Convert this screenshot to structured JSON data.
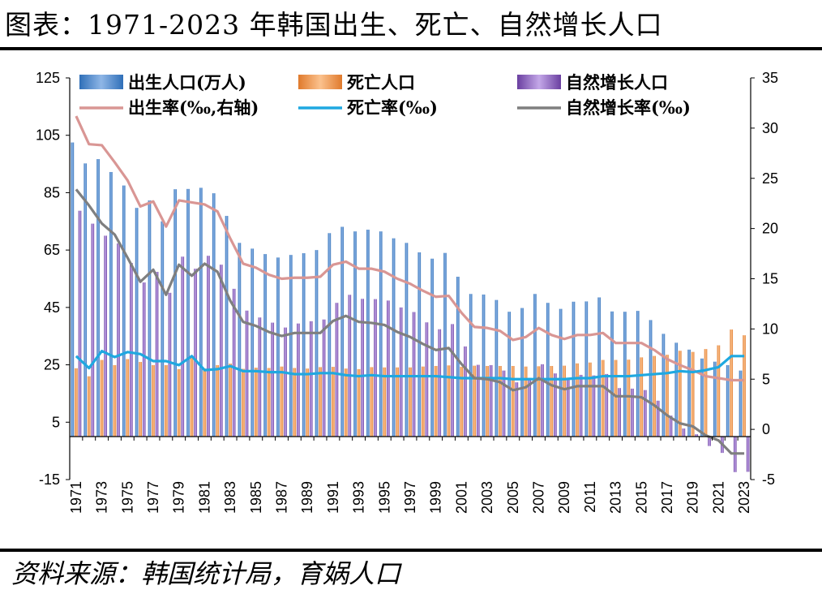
{
  "title": "图表：1971-2023 年韩国出生、死亡、自然增长人口",
  "source": "资料来源：韩国统计局，育娲人口",
  "chart_data": {
    "type": "bar",
    "title": "图表：1971-2023 年韩国出生、死亡、自然增长人口",
    "x": [
      1971,
      1972,
      1973,
      1974,
      1975,
      1976,
      1977,
      1978,
      1979,
      1980,
      1981,
      1982,
      1983,
      1984,
      1985,
      1986,
      1987,
      1988,
      1989,
      1990,
      1991,
      1992,
      1993,
      1994,
      1995,
      1996,
      1997,
      1998,
      1999,
      2000,
      2001,
      2002,
      2003,
      2004,
      2005,
      2006,
      2007,
      2008,
      2009,
      2010,
      2011,
      2012,
      2013,
      2014,
      2015,
      2016,
      2017,
      2018,
      2019,
      2020,
      2021,
      2022,
      2023
    ],
    "x_tick_labels": [
      "1971",
      "1973",
      "1975",
      "1977",
      "1979",
      "1981",
      "1983",
      "1985",
      "1987",
      "1989",
      "1991",
      "1993",
      "1995",
      "1997",
      "1999",
      "2001",
      "2003",
      "2005",
      "2007",
      "2009",
      "2011",
      "2013",
      "2015",
      "2017",
      "2019",
      "2021",
      "2023"
    ],
    "left_axis": {
      "ylim": [
        -15,
        125
      ],
      "ticks": [
        "-15",
        "5",
        "25",
        "45",
        "65",
        "85",
        "105",
        "125"
      ]
    },
    "right_axis": {
      "ylim": [
        -5,
        35
      ],
      "ticks": [
        "-5",
        "0",
        "5",
        "10",
        "15",
        "20",
        "25",
        "30",
        "35"
      ]
    },
    "grid": false,
    "legend_position": "top",
    "series": [
      {
        "name": "出生人口(万人)",
        "type": "bar",
        "axis": "left",
        "color": "#4f81bd",
        "values": [
          102.5,
          95.2,
          96.7,
          92.2,
          87.5,
          79.7,
          82.3,
          75.0,
          86.2,
          86.3,
          86.7,
          84.8,
          76.9,
          67.5,
          65.5,
          63.6,
          62.4,
          63.3,
          63.9,
          65.0,
          70.9,
          73.1,
          71.5,
          72.1,
          71.5,
          69.1,
          67.5,
          64.2,
          62.0,
          64.0,
          55.7,
          49.7,
          49.5,
          47.6,
          43.5,
          44.8,
          49.7,
          46.6,
          44.5,
          47.0,
          47.1,
          48.5,
          43.6,
          43.5,
          43.8,
          40.6,
          35.8,
          32.7,
          30.3,
          27.2,
          26.1,
          24.9,
          23.0
        ]
      },
      {
        "name": "死亡人口",
        "type": "bar",
        "axis": "left",
        "color": "#f79646",
        "values": [
          23.8,
          21.0,
          26.7,
          24.9,
          27.0,
          26.0,
          24.9,
          24.9,
          23.5,
          27.8,
          23.7,
          24.9,
          25.4,
          23.6,
          24.0,
          23.9,
          24.4,
          23.9,
          23.7,
          24.2,
          24.3,
          23.7,
          23.5,
          24.2,
          24.1,
          24.1,
          24.1,
          24.4,
          24.6,
          24.8,
          24.3,
          24.7,
          24.6,
          24.6,
          24.6,
          24.4,
          24.5,
          24.6,
          24.7,
          25.5,
          25.8,
          26.7,
          26.7,
          26.8,
          27.6,
          28.1,
          28.5,
          29.9,
          29.5,
          30.5,
          31.8,
          37.3,
          35.3
        ]
      },
      {
        "name": "自然增长人口",
        "type": "bar",
        "axis": "left",
        "color": "#8064a2",
        "values": [
          78.7,
          74.2,
          70.0,
          67.3,
          60.5,
          53.7,
          57.4,
          50.1,
          62.7,
          58.5,
          63.0,
          59.9,
          51.5,
          43.9,
          41.5,
          39.7,
          38.0,
          39.4,
          40.2,
          40.8,
          46.6,
          49.4,
          48.0,
          47.9,
          47.4,
          45.0,
          43.4,
          39.8,
          37.4,
          39.2,
          31.4,
          25.0,
          24.9,
          23.0,
          18.9,
          20.4,
          25.2,
          22.0,
          19.8,
          21.5,
          21.3,
          21.8,
          16.9,
          16.7,
          16.2,
          12.5,
          7.3,
          2.8,
          0.8,
          -3.3,
          -5.7,
          -12.4,
          -12.3
        ]
      },
      {
        "name": "出生率(‰,右轴)",
        "type": "line",
        "axis": "right",
        "color": "#d99694",
        "values": [
          31.2,
          28.4,
          28.3,
          26.6,
          24.8,
          22.2,
          22.7,
          20.2,
          22.8,
          22.6,
          22.4,
          21.7,
          19.0,
          16.5,
          16.1,
          15.4,
          15.0,
          15.1,
          15.1,
          15.2,
          16.4,
          16.7,
          16.0,
          16.0,
          15.7,
          15.0,
          14.5,
          13.8,
          13.2,
          13.3,
          11.6,
          10.2,
          10.1,
          9.8,
          8.9,
          9.2,
          10.1,
          9.4,
          9.0,
          9.4,
          9.4,
          9.6,
          8.6,
          8.6,
          8.6,
          7.9,
          7.0,
          6.4,
          5.9,
          5.3,
          5.1,
          4.9,
          4.9
        ]
      },
      {
        "name": "死亡率(‰)",
        "type": "line",
        "axis": "right",
        "color": "#1fa8e0",
        "values": [
          7.3,
          6.1,
          7.8,
          7.2,
          7.7,
          7.5,
          6.8,
          6.8,
          6.4,
          7.3,
          5.9,
          6.0,
          6.3,
          5.8,
          5.8,
          5.7,
          5.7,
          5.5,
          5.5,
          5.6,
          5.6,
          5.4,
          5.3,
          5.4,
          5.3,
          5.3,
          5.3,
          5.3,
          5.3,
          5.2,
          5.1,
          5.1,
          5.1,
          5.1,
          5.0,
          5.0,
          5.0,
          5.0,
          5.0,
          5.1,
          5.1,
          5.3,
          5.3,
          5.3,
          5.4,
          5.5,
          5.6,
          5.8,
          5.7,
          5.9,
          6.2,
          7.3,
          7.3
        ]
      },
      {
        "name": "自然增长率(‰)",
        "type": "line",
        "axis": "right",
        "color": "#7f7f7f",
        "values": [
          23.9,
          22.3,
          20.5,
          19.4,
          17.1,
          14.7,
          15.9,
          13.4,
          16.4,
          15.3,
          16.5,
          15.7,
          12.8,
          10.7,
          10.3,
          9.7,
          9.3,
          9.6,
          9.6,
          9.6,
          10.8,
          11.3,
          10.7,
          10.6,
          10.4,
          9.7,
          9.2,
          8.5,
          7.9,
          8.1,
          6.5,
          5.1,
          5.0,
          4.7,
          3.9,
          4.2,
          5.1,
          4.4,
          4.0,
          4.3,
          4.3,
          4.3,
          3.3,
          3.3,
          3.2,
          2.4,
          1.4,
          0.6,
          0.3,
          -0.6,
          -1.1,
          -2.4,
          -2.4
        ]
      }
    ]
  }
}
